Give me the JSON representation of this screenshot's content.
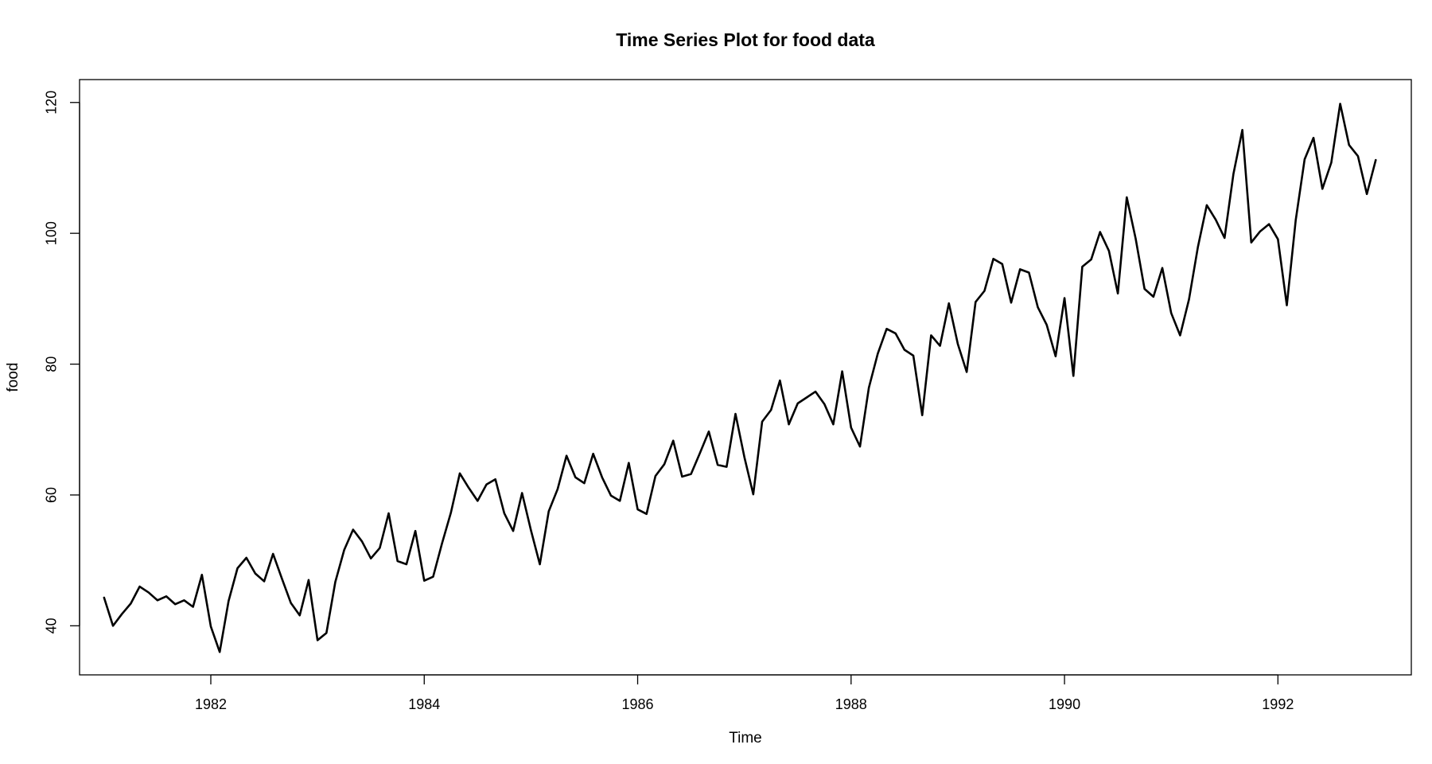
{
  "chart_data": {
    "type": "line",
    "title": "Time Series Plot for food data",
    "xlabel": "Time",
    "ylabel": "food",
    "xlim": [
      1980.77,
      1993.25
    ],
    "ylim": [
      32.5,
      123.5
    ],
    "x_ticks": [
      1982,
      1984,
      1986,
      1988,
      1990,
      1992
    ],
    "x_tick_labels": [
      "1982",
      "1984",
      "1986",
      "1988",
      "1990",
      "1992"
    ],
    "y_ticks": [
      40,
      60,
      80,
      100,
      120
    ],
    "y_tick_labels": [
      "40",
      "60",
      "80",
      "100",
      "120"
    ],
    "grid": false,
    "legend": "none",
    "line_color": "#000000",
    "start": 1981,
    "frequency": 12,
    "values": [
      44.3,
      40.0,
      41.8,
      43.4,
      46.0,
      45.1,
      43.9,
      44.5,
      43.3,
      43.9,
      42.9,
      47.8,
      39.9,
      36.0,
      43.8,
      48.8,
      50.4,
      48.0,
      46.8,
      51.0,
      47.2,
      43.5,
      41.6,
      47.0,
      37.8,
      38.9,
      46.7,
      51.6,
      54.7,
      52.9,
      50.3,
      51.9,
      57.2,
      49.9,
      49.4,
      54.5,
      46.9,
      47.5,
      52.6,
      57.3,
      63.3,
      61.1,
      59.1,
      61.6,
      62.4,
      57.2,
      54.5,
      60.3,
      54.6,
      49.4,
      57.5,
      60.9,
      66.0,
      62.7,
      61.8,
      66.3,
      62.7,
      59.9,
      59.1,
      64.9,
      57.8,
      57.1,
      62.9,
      64.7,
      68.3,
      62.8,
      63.2,
      66.4,
      69.7,
      64.6,
      64.3,
      72.4,
      65.8,
      60.1,
      71.2,
      73.0,
      77.5,
      70.8,
      74.0,
      74.9,
      75.8,
      73.9,
      70.8,
      78.9,
      70.3,
      67.4,
      76.4,
      81.6,
      85.4,
      84.7,
      82.2,
      81.3,
      72.2,
      84.4,
      82.8,
      89.3,
      83.1,
      78.8,
      89.5,
      91.2,
      96.1,
      95.3,
      89.4,
      94.5,
      94.0,
      88.7,
      86.0,
      81.2,
      90.1,
      78.2,
      94.9,
      96.0,
      100.2,
      97.3,
      90.8,
      105.5,
      99.2,
      91.5,
      90.3,
      94.7,
      87.8,
      84.4,
      89.9,
      97.9,
      104.3,
      102.1,
      99.3,
      109.1,
      115.8,
      98.6,
      100.3,
      101.4,
      99.1,
      89.0,
      102.0,
      111.3,
      114.6,
      106.8,
      110.8,
      119.8,
      113.5,
      111.8,
      106.0,
      111.2
    ]
  }
}
